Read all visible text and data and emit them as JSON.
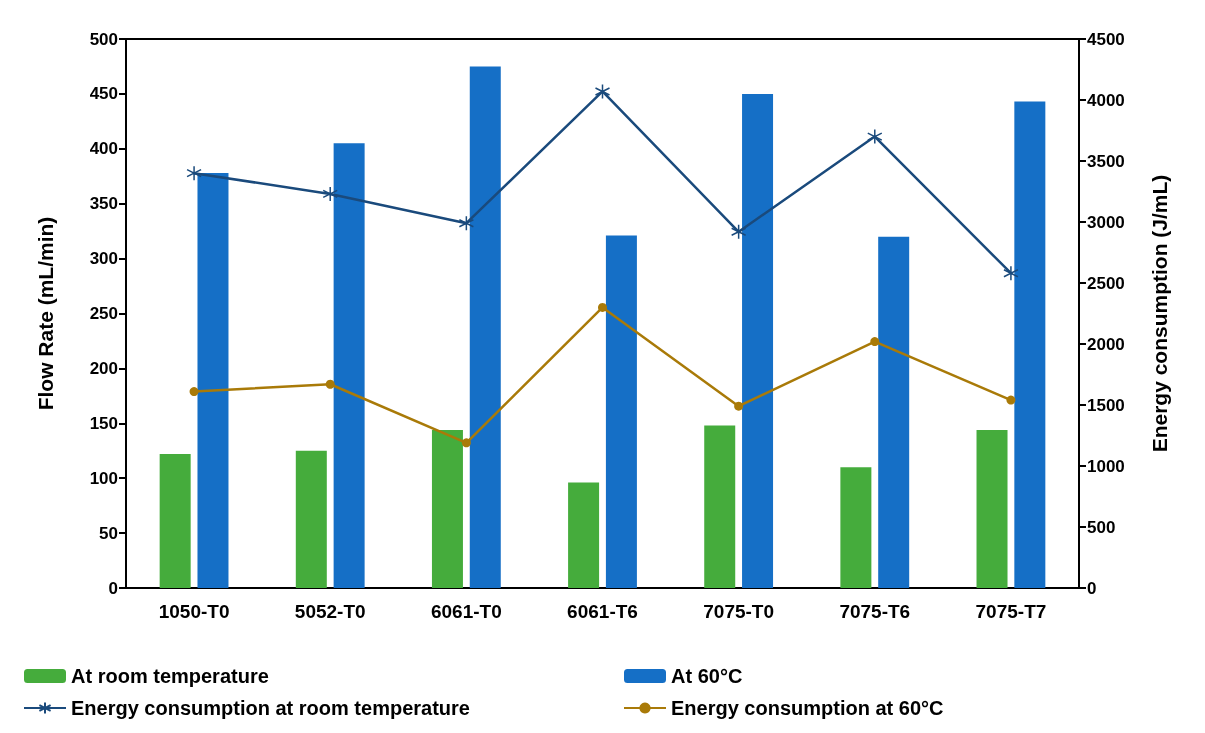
{
  "chart_data": {
    "type": "bar",
    "categories": [
      "1050-T0",
      "5052-T0",
      "6061-T0",
      "6061-T6",
      "7075-T0",
      "7075-T6",
      "7075-T7"
    ],
    "ylabel": "Flow Rate (mL/min)",
    "y2label": "Energy consumption (J/mL)",
    "ylim": [
      0,
      500
    ],
    "yticks": [
      0,
      50,
      100,
      150,
      200,
      250,
      300,
      350,
      400,
      450,
      500
    ],
    "y2lim": [
      0,
      4500
    ],
    "y2ticks": [
      0,
      500,
      1000,
      1500,
      2000,
      2500,
      3000,
      3500,
      4000,
      4500
    ],
    "grid": false,
    "legend": "bottom",
    "series": [
      {
        "name": "At room temperature",
        "color": "#45ac3c",
        "values": [
          122,
          125,
          144,
          96,
          148,
          110,
          144
        ]
      },
      {
        "name": "At 60°C",
        "color": "#156fc6",
        "values": [
          378,
          405,
          475,
          321,
          450,
          320,
          443
        ]
      },
      {
        "name": "Energy consumption at room temperature",
        "type": "line",
        "axis": "y2",
        "marker": "cross",
        "color": "#1a4a7c",
        "values": [
          3400,
          3230,
          2990,
          4070,
          2920,
          3700,
          2580
        ]
      },
      {
        "name": "Energy consumption at 60°C",
        "type": "line",
        "axis": "y2",
        "marker": "circle",
        "color": "#a97a08",
        "values": [
          1610,
          1670,
          1190,
          2300,
          1490,
          2020,
          1540
        ]
      }
    ]
  }
}
